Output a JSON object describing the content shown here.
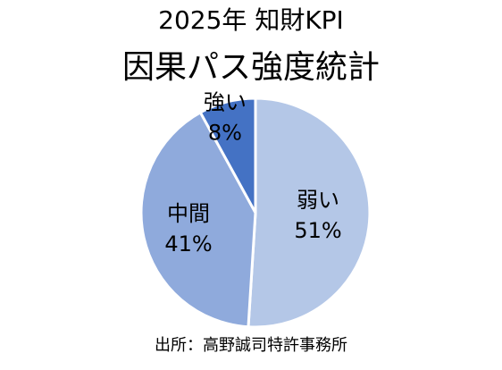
{
  "chart_data": {
    "type": "pie",
    "title": "2025年 知財KPI",
    "subtitle": "因果パス強度統計",
    "categories": [
      "弱い",
      "中間",
      "強い"
    ],
    "values": [
      51,
      41,
      8
    ],
    "value_labels": [
      "51%",
      "41%",
      "8%"
    ],
    "colors": [
      "#b4c7e7",
      "#8faadc",
      "#4472c4"
    ],
    "start": "12 o'clock",
    "direction": "clockwise",
    "legend": "none",
    "labels_position": "inside"
  },
  "source": "出所：高野誠司特許事務所"
}
